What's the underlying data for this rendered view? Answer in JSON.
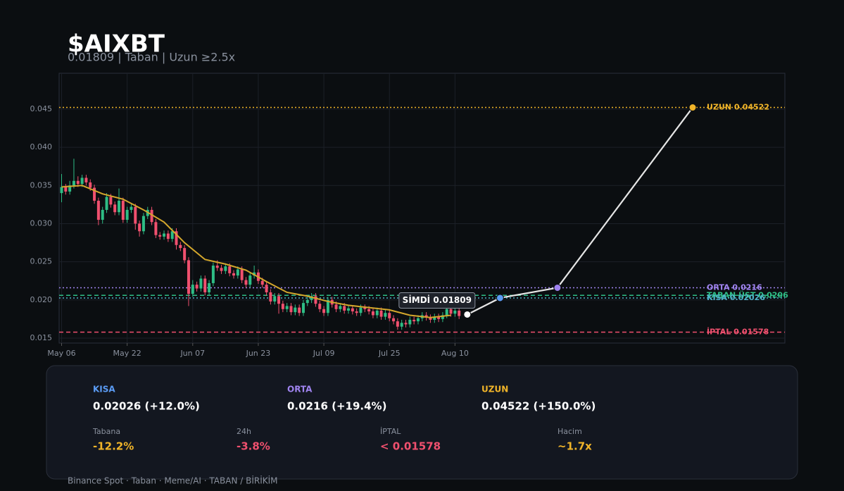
{
  "header": {
    "title": "$AIXBT",
    "subtitle": "0.01809  |  Taban  |  Uzun ≥2.5x"
  },
  "chart_data": {
    "type": "candlestick",
    "x": [
      0,
      1,
      2,
      3,
      4,
      5,
      6,
      7,
      8,
      9,
      10,
      11,
      12,
      13,
      14,
      15,
      16,
      17,
      18,
      19,
      20,
      21,
      22,
      23,
      24,
      25,
      26,
      27,
      28,
      29,
      30,
      31,
      32,
      33,
      34,
      35,
      36,
      37,
      38,
      39,
      40,
      41,
      42,
      43,
      44,
      45,
      46,
      47,
      48,
      49,
      50,
      51,
      52,
      53,
      54,
      55,
      56,
      57,
      58,
      59,
      60,
      61,
      62,
      63,
      64,
      65,
      66,
      67,
      68,
      69,
      70,
      71,
      72,
      73,
      74,
      75,
      76,
      77,
      78,
      79,
      80,
      81,
      82,
      83,
      84,
      85,
      86,
      87,
      88,
      89,
      90,
      91,
      92,
      93,
      94,
      95,
      96,
      97
    ],
    "open": [
      0.034,
      0.0348,
      0.0342,
      0.035,
      0.0356,
      0.0352,
      0.036,
      0.0354,
      0.0347,
      0.033,
      0.0305,
      0.0318,
      0.0335,
      0.0325,
      0.0315,
      0.033,
      0.0305,
      0.0318,
      0.0322,
      0.03,
      0.029,
      0.031,
      0.0318,
      0.0302,
      0.0285,
      0.0283,
      0.0287,
      0.028,
      0.029,
      0.0272,
      0.0268,
      0.0252,
      0.0208,
      0.022,
      0.0215,
      0.0228,
      0.021,
      0.0222,
      0.0245,
      0.0242,
      0.0238,
      0.0244,
      0.0235,
      0.0232,
      0.024,
      0.0226,
      0.022,
      0.0232,
      0.0236,
      0.0225,
      0.022,
      0.021,
      0.0198,
      0.0205,
      0.0195,
      0.0188,
      0.0192,
      0.0184,
      0.019,
      0.0183,
      0.0196,
      0.02,
      0.0205,
      0.0195,
      0.0188,
      0.0183,
      0.02,
      0.0194,
      0.0188,
      0.0192,
      0.0186,
      0.0189,
      0.0185,
      0.0183,
      0.019,
      0.0188,
      0.0185,
      0.018,
      0.0186,
      0.0178,
      0.0183,
      0.0176,
      0.0172,
      0.0165,
      0.017,
      0.0168,
      0.0174,
      0.0172,
      0.0176,
      0.018,
      0.0177,
      0.0174,
      0.0178,
      0.0175,
      0.018,
      0.0188,
      0.0182,
      0.0186
    ],
    "high": [
      0.0365,
      0.0352,
      0.0356,
      0.0385,
      0.0362,
      0.0364,
      0.0364,
      0.0358,
      0.0351,
      0.0334,
      0.0322,
      0.034,
      0.0339,
      0.0329,
      0.0346,
      0.0334,
      0.0322,
      0.0326,
      0.0326,
      0.0304,
      0.0314,
      0.0322,
      0.0322,
      0.0306,
      0.0289,
      0.0291,
      0.0291,
      0.0294,
      0.0294,
      0.0276,
      0.0272,
      0.0256,
      0.0226,
      0.0224,
      0.0232,
      0.0232,
      0.0226,
      0.0249,
      0.0252,
      0.0246,
      0.0248,
      0.0248,
      0.0239,
      0.0244,
      0.0244,
      0.023,
      0.0236,
      0.0245,
      0.024,
      0.0229,
      0.0224,
      0.0214,
      0.0209,
      0.0209,
      0.0199,
      0.0196,
      0.0196,
      0.0194,
      0.0194,
      0.02,
      0.0204,
      0.0209,
      0.0209,
      0.0199,
      0.0192,
      0.0204,
      0.0204,
      0.0198,
      0.0196,
      0.0196,
      0.0193,
      0.0193,
      0.0189,
      0.0194,
      0.0194,
      0.0192,
      0.0189,
      0.019,
      0.019,
      0.0187,
      0.0187,
      0.018,
      0.0176,
      0.0174,
      0.0174,
      0.0178,
      0.0178,
      0.018,
      0.0184,
      0.0184,
      0.0181,
      0.0182,
      0.0182,
      0.0184,
      0.0192,
      0.0192,
      0.019,
      0.019
    ],
    "low": [
      0.0328,
      0.0338,
      0.0338,
      0.0346,
      0.0348,
      0.0348,
      0.035,
      0.0343,
      0.0326,
      0.0298,
      0.03,
      0.0314,
      0.0321,
      0.0311,
      0.0311,
      0.0301,
      0.0301,
      0.0314,
      0.0292,
      0.0283,
      0.0286,
      0.0306,
      0.0298,
      0.0281,
      0.0279,
      0.0279,
      0.0276,
      0.0276,
      0.0266,
      0.0264,
      0.0248,
      0.0192,
      0.0204,
      0.0211,
      0.0211,
      0.0206,
      0.0206,
      0.0218,
      0.0238,
      0.0234,
      0.0234,
      0.0231,
      0.0228,
      0.0228,
      0.0222,
      0.0216,
      0.0216,
      0.0228,
      0.0221,
      0.0216,
      0.0206,
      0.0194,
      0.0194,
      0.0182,
      0.0184,
      0.0184,
      0.018,
      0.018,
      0.0179,
      0.0179,
      0.0192,
      0.0196,
      0.0191,
      0.0184,
      0.0179,
      0.0179,
      0.019,
      0.0184,
      0.0184,
      0.0182,
      0.0182,
      0.0181,
      0.0179,
      0.0179,
      0.0184,
      0.0181,
      0.0176,
      0.0176,
      0.0174,
      0.0174,
      0.0172,
      0.0168,
      0.0161,
      0.0161,
      0.0164,
      0.0164,
      0.0168,
      0.0168,
      0.0172,
      0.0173,
      0.017,
      0.017,
      0.0171,
      0.0171,
      0.0176,
      0.0178,
      0.0178,
      0.0175
    ],
    "close": [
      0.0348,
      0.0342,
      0.035,
      0.0356,
      0.0352,
      0.036,
      0.0354,
      0.0347,
      0.033,
      0.0305,
      0.0318,
      0.0335,
      0.0325,
      0.0315,
      0.033,
      0.0305,
      0.0318,
      0.0322,
      0.03,
      0.029,
      0.031,
      0.0318,
      0.0302,
      0.0285,
      0.0283,
      0.0287,
      0.028,
      0.029,
      0.0272,
      0.0268,
      0.0252,
      0.0208,
      0.022,
      0.0215,
      0.0228,
      0.021,
      0.0222,
      0.0245,
      0.0242,
      0.0238,
      0.0244,
      0.0235,
      0.0232,
      0.024,
      0.0226,
      0.022,
      0.0232,
      0.0236,
      0.0225,
      0.022,
      0.021,
      0.0198,
      0.0205,
      0.0195,
      0.0188,
      0.0192,
      0.0184,
      0.019,
      0.0183,
      0.0196,
      0.02,
      0.0205,
      0.0195,
      0.0188,
      0.0183,
      0.02,
      0.0194,
      0.0188,
      0.0192,
      0.0186,
      0.0189,
      0.0185,
      0.0183,
      0.019,
      0.0188,
      0.0185,
      0.018,
      0.0186,
      0.0178,
      0.0183,
      0.0176,
      0.0172,
      0.0165,
      0.017,
      0.0168,
      0.0174,
      0.0172,
      0.0176,
      0.018,
      0.0177,
      0.0174,
      0.0178,
      0.0175,
      0.018,
      0.0188,
      0.0182,
      0.0186,
      0.0179
    ],
    "up_color": "#2ebd85",
    "down_color": "#f0506e",
    "ma": {
      "color": "#d4a72c",
      "x": [
        0,
        5,
        10,
        15,
        20,
        25,
        30,
        35,
        40,
        45,
        50,
        55,
        60,
        65,
        70,
        75,
        80,
        85,
        90,
        95
      ],
      "values": [
        0.0348,
        0.035,
        0.0339,
        0.0332,
        0.0318,
        0.0302,
        0.0275,
        0.0253,
        0.0247,
        0.0239,
        0.0224,
        0.021,
        0.0205,
        0.0198,
        0.0193,
        0.019,
        0.0187,
        0.018,
        0.0177,
        0.018
      ]
    },
    "projection": {
      "color": "#e6e6e6",
      "x": [
        99,
        107,
        121,
        154
      ],
      "values": [
        0.01809,
        0.02026,
        0.0216,
        0.04522
      ],
      "point_colors": [
        "#ffffff",
        "#5b9cf5",
        "#a084f0",
        "#f0b429"
      ]
    },
    "now_label": "SİMDİ 0.01809",
    "levels": [
      {
        "label": "UZUN 0.04522",
        "value": 0.04522,
        "color": "#f0b429",
        "style": "dotted"
      },
      {
        "label": "ORTA 0.0216",
        "value": 0.0216,
        "color": "#a084f0",
        "style": "dotted"
      },
      {
        "label": "TABAN ÜST 0.0206",
        "value": 0.0206,
        "color": "#2ebd85",
        "style": "dashed"
      },
      {
        "label": "KISA 0.02026",
        "value": 0.02026,
        "color": "#4fb3c8",
        "style": "dotted"
      },
      {
        "label": "İPTAL 0.01578",
        "value": 0.01578,
        "color": "#f0506e",
        "style": "dashed"
      }
    ],
    "xlim": [
      -0.6,
      176.5
    ],
    "ylim": [
      0.01435,
      0.0497
    ],
    "xticks": [
      {
        "value": 0,
        "label": "May 06"
      },
      {
        "value": 16,
        "label": "May 22"
      },
      {
        "value": 32,
        "label": "Jun 07"
      },
      {
        "value": 48,
        "label": "Jun 23"
      },
      {
        "value": 64,
        "label": "Jul 09"
      },
      {
        "value": 80,
        "label": "Jul 25"
      },
      {
        "value": 96,
        "label": "Aug 10"
      }
    ],
    "yticks": [
      0.015,
      {
        "value": 0.02,
        "label": "0.020"
      },
      0.025,
      {
        "value": 0.03,
        "label": "0.030"
      },
      0.035,
      {
        "value": 0.04,
        "label": "0.040"
      },
      0.045
    ],
    "grid": true
  },
  "panel": {
    "targets": [
      {
        "label": "KISA",
        "value": "0.02026  (+12.0%)",
        "color": "#5b9cf5"
      },
      {
        "label": "ORTA",
        "value": "0.0216  (+19.4%)",
        "color": "#a084f0"
      },
      {
        "label": "UZUN",
        "value": "0.04522  (+150.0%)",
        "color": "#f0b429"
      }
    ],
    "stats": [
      {
        "label": "Tabana",
        "value": "-12.2%",
        "color": "#f0b429"
      },
      {
        "label": "24h",
        "value": "-3.8%",
        "color": "#f0506e"
      },
      {
        "label": "İPTAL",
        "value": "< 0.01578",
        "color": "#f0506e"
      },
      {
        "label": "Hacim",
        "value": "~1.7x",
        "color": "#f0b429"
      }
    ]
  },
  "footer": "Binance Spot · Taban · Meme/AI · TABAN / BİRİKİM"
}
